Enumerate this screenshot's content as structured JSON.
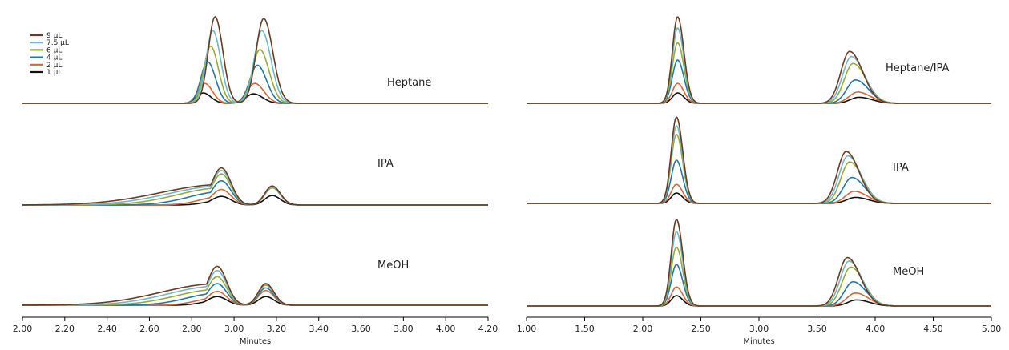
{
  "legend": {
    "entries": [
      {
        "label": "9 µL",
        "color": "#6b3a1f"
      },
      {
        "label": "7.5 µL",
        "color": "#6fb8c9"
      },
      {
        "label": "6 µL",
        "color": "#9aaa3a"
      },
      {
        "label": "4 µL",
        "color": "#1f78a8"
      },
      {
        "label": "2 µL",
        "color": "#d2693a"
      },
      {
        "label": "1 µL",
        "color": "#111111"
      }
    ]
  },
  "chart_data": [
    {
      "type": "line",
      "panel": "left",
      "xlabel": "Minutes",
      "xlim": [
        2.0,
        4.2
      ],
      "xticks": [
        "2.00",
        "2.20",
        "2.40",
        "2.60",
        "2.80",
        "3.00",
        "3.20",
        "3.40",
        "3.60",
        "3.80",
        "4.00",
        "4.20"
      ],
      "grid": false,
      "legend_placement": "top-left",
      "traces": [
        {
          "label": "Heptane",
          "peaks": [
            {
              "rt": 2.91,
              "width": 0.032,
              "tail": 1.15,
              "frac": 0.0
            },
            {
              "rt": 3.14,
              "width": 0.036,
              "tail": 1.2,
              "frac": 0.0
            }
          ],
          "rt_shift_per_ul": [
            0.007,
            0.006
          ],
          "series": [
            {
              "name": "9 µL",
              "peak_heights": [
                1.0,
                0.98
              ]
            },
            {
              "name": "7.5 µL",
              "peak_heights": [
                0.84,
                0.84
              ]
            },
            {
              "name": "6 µL",
              "peak_heights": [
                0.66,
                0.62
              ]
            },
            {
              "name": "4 µL",
              "peak_heights": [
                0.48,
                0.44
              ]
            },
            {
              "name": "2 µL",
              "peak_heights": [
                0.23,
                0.23
              ]
            },
            {
              "name": "1 µL",
              "peak_heights": [
                0.12,
                0.11
              ]
            }
          ]
        },
        {
          "label": "IPA",
          "peaks": [
            {
              "rt": 2.94,
              "width": 0.045,
              "tail": 1.0,
              "frac": 0.11
            },
            {
              "rt": 3.18,
              "width": 0.035,
              "tail": 1.1,
              "frac": 0.0
            }
          ],
          "rt_shift_per_ul": [
            0.0,
            0.0
          ],
          "series": [
            {
              "name": "9 µL",
              "peak_heights": [
                0.43,
                0.22
              ]
            },
            {
              "name": "7.5 µL",
              "peak_heights": [
                0.4,
                0.21
              ]
            },
            {
              "name": "6 µL",
              "peak_heights": [
                0.36,
                0.2
              ]
            },
            {
              "name": "4 µL",
              "peak_heights": [
                0.28,
                0.2
              ]
            },
            {
              "name": "2 µL",
              "peak_heights": [
                0.18,
                0.2
              ]
            },
            {
              "name": "1 µL",
              "peak_heights": [
                0.1,
                0.11
              ]
            }
          ]
        },
        {
          "label": "MeOH",
          "peaks": [
            {
              "rt": 2.92,
              "width": 0.045,
              "tail": 1.0,
              "frac": 0.1
            },
            {
              "rt": 3.15,
              "width": 0.035,
              "tail": 1.1,
              "frac": 0.0
            }
          ],
          "rt_shift_per_ul": [
            0.0,
            0.0
          ],
          "series": [
            {
              "name": "9 µL",
              "peak_heights": [
                0.45,
                0.25
              ]
            },
            {
              "name": "7.5 µL",
              "peak_heights": [
                0.4,
                0.24
              ]
            },
            {
              "name": "6 µL",
              "peak_heights": [
                0.33,
                0.23
              ]
            },
            {
              "name": "4 µL",
              "peak_heights": [
                0.25,
                0.2
              ]
            },
            {
              "name": "2 µL",
              "peak_heights": [
                0.16,
                0.17
              ]
            },
            {
              "name": "1 µL",
              "peak_heights": [
                0.1,
                0.1
              ]
            }
          ]
        }
      ]
    },
    {
      "type": "line",
      "panel": "right",
      "xlabel": "Minutes",
      "xlim": [
        1.0,
        5.0
      ],
      "xticks": [
        "1.00",
        "1.50",
        "2.00",
        "2.50",
        "3.00",
        "3.50",
        "4.00",
        "4.50",
        "5.00"
      ],
      "grid": false,
      "traces": [
        {
          "label": "Heptane/IPA",
          "peaks": [
            {
              "rt": 2.3,
              "width": 0.045,
              "tail": 1.2,
              "frac": 0.0
            },
            {
              "rt": 3.78,
              "width": 0.075,
              "tail": 1.5,
              "frac": 0.0
            }
          ],
          "rt_shift_per_ul": [
            0.0,
            -0.01
          ],
          "series": [
            {
              "name": "9 µL",
              "peak_heights": [
                1.0,
                0.6
              ]
            },
            {
              "name": "7.5 µL",
              "peak_heights": [
                0.87,
                0.54
              ]
            },
            {
              "name": "6 µL",
              "peak_heights": [
                0.7,
                0.46
              ]
            },
            {
              "name": "4 µL",
              "peak_heights": [
                0.5,
                0.27
              ]
            },
            {
              "name": "2 µL",
              "peak_heights": [
                0.23,
                0.13
              ]
            },
            {
              "name": "1 µL",
              "peak_heights": [
                0.12,
                0.07
              ]
            }
          ]
        },
        {
          "label": "IPA",
          "peaks": [
            {
              "rt": 2.29,
              "width": 0.045,
              "tail": 1.2,
              "frac": 0.0
            },
            {
              "rt": 3.75,
              "width": 0.075,
              "tail": 1.5,
              "frac": 0.0
            }
          ],
          "rt_shift_per_ul": [
            0.0,
            -0.01
          ],
          "series": [
            {
              "name": "9 µL",
              "peak_heights": [
                1.0,
                0.6
              ]
            },
            {
              "name": "7.5 µL",
              "peak_heights": [
                0.9,
                0.55
              ]
            },
            {
              "name": "6 µL",
              "peak_heights": [
                0.8,
                0.48
              ]
            },
            {
              "name": "4 µL",
              "peak_heights": [
                0.5,
                0.3
              ]
            },
            {
              "name": "2 µL",
              "peak_heights": [
                0.22,
                0.14
              ]
            },
            {
              "name": "1 µL",
              "peak_heights": [
                0.12,
                0.07
              ]
            }
          ]
        },
        {
          "label": "MeOH",
          "peaks": [
            {
              "rt": 2.29,
              "width": 0.045,
              "tail": 1.2,
              "frac": 0.0
            },
            {
              "rt": 3.76,
              "width": 0.075,
              "tail": 1.5,
              "frac": 0.0
            }
          ],
          "rt_shift_per_ul": [
            0.0,
            -0.01
          ],
          "series": [
            {
              "name": "9 µL",
              "peak_heights": [
                1.0,
                0.56
              ]
            },
            {
              "name": "7.5 µL",
              "peak_heights": [
                0.86,
                0.52
              ]
            },
            {
              "name": "6 µL",
              "peak_heights": [
                0.68,
                0.45
              ]
            },
            {
              "name": "4 µL",
              "peak_heights": [
                0.48,
                0.28
              ]
            },
            {
              "name": "2 µL",
              "peak_heights": [
                0.22,
                0.15
              ]
            },
            {
              "name": "1 µL",
              "peak_heights": [
                0.12,
                0.07
              ]
            }
          ]
        }
      ]
    }
  ]
}
